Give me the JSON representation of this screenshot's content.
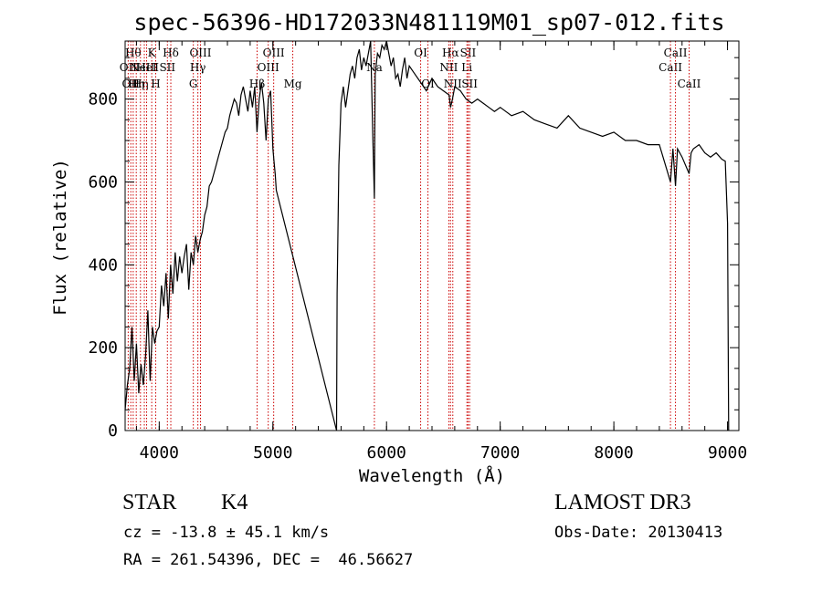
{
  "chart_data": {
    "type": "line",
    "title": "spec-56396-HD172033N481119M01_sp07-012.fits",
    "xlabel": "Wavelength (Å)",
    "ylabel": "Flux (relative)",
    "xlim": [
      3700,
      9100
    ],
    "ylim": [
      0,
      940
    ],
    "xticks": [
      4000,
      5000,
      6000,
      7000,
      8000,
      9000
    ],
    "yticks": [
      0,
      200,
      400,
      600,
      800
    ],
    "gap": [
      5030,
      5560
    ],
    "series": [
      {
        "name": "flux",
        "x": [
          3700,
          3720,
          3740,
          3760,
          3780,
          3800,
          3820,
          3840,
          3860,
          3880,
          3900,
          3920,
          3940,
          3960,
          3980,
          4000,
          4020,
          4040,
          4060,
          4080,
          4100,
          4120,
          4140,
          4160,
          4180,
          4200,
          4220,
          4240,
          4260,
          4280,
          4300,
          4320,
          4340,
          4360,
          4380,
          4400,
          4420,
          4440,
          4460,
          4480,
          4500,
          4520,
          4540,
          4560,
          4580,
          4600,
          4620,
          4640,
          4660,
          4680,
          4700,
          4720,
          4740,
          4760,
          4780,
          4800,
          4820,
          4840,
          4860,
          4880,
          4900,
          4920,
          4940,
          4960,
          4980,
          5000,
          5010,
          5020,
          5030,
          5560,
          5565,
          5580,
          5600,
          5620,
          5640,
          5660,
          5680,
          5700,
          5720,
          5740,
          5760,
          5780,
          5800,
          5820,
          5840,
          5860,
          5880,
          5893,
          5900,
          5920,
          5940,
          5960,
          5980,
          6000,
          6020,
          6040,
          6060,
          6080,
          6100,
          6120,
          6140,
          6160,
          6180,
          6200,
          6250,
          6300,
          6350,
          6400,
          6450,
          6500,
          6550,
          6563,
          6580,
          6600,
          6650,
          6700,
          6750,
          6800,
          6850,
          6900,
          6950,
          7000,
          7100,
          7200,
          7300,
          7400,
          7500,
          7600,
          7700,
          7800,
          7900,
          8000,
          8100,
          8200,
          8300,
          8400,
          8498,
          8520,
          8542,
          8560,
          8600,
          8662,
          8680,
          8700,
          8750,
          8800,
          8850,
          8900,
          8950,
          8980,
          9000,
          9010
        ],
        "values": [
          50,
          110,
          150,
          250,
          120,
          210,
          90,
          160,
          110,
          180,
          290,
          120,
          250,
          210,
          240,
          250,
          350,
          300,
          380,
          270,
          400,
          330,
          430,
          360,
          420,
          380,
          420,
          450,
          340,
          430,
          400,
          470,
          430,
          460,
          480,
          520,
          540,
          590,
          600,
          620,
          640,
          660,
          680,
          700,
          720,
          730,
          760,
          780,
          800,
          790,
          760,
          810,
          830,
          800,
          770,
          820,
          780,
          830,
          720,
          800,
          840,
          790,
          700,
          800,
          820,
          680,
          650,
          620,
          580,
          0,
          330,
          640,
          790,
          830,
          780,
          820,
          860,
          880,
          850,
          900,
          920,
          870,
          900,
          880,
          910,
          940,
          700,
          560,
          860,
          910,
          900,
          930,
          920,
          940,
          910,
          880,
          900,
          850,
          860,
          830,
          870,
          900,
          850,
          880,
          860,
          840,
          820,
          850,
          830,
          820,
          810,
          780,
          800,
          830,
          820,
          800,
          790,
          800,
          790,
          780,
          770,
          780,
          760,
          770,
          750,
          740,
          730,
          760,
          730,
          720,
          710,
          720,
          700,
          700,
          690,
          690,
          600,
          680,
          590,
          680,
          660,
          620,
          670,
          680,
          690,
          670,
          660,
          670,
          655,
          650,
          500,
          0
        ],
        "color": "#000000"
      }
    ],
    "lines_color": "#cc0000",
    "lines": [
      {
        "w": 3727,
        "label": "OII",
        "row": 2
      },
      {
        "w": 3750,
        "label": "OII",
        "row": 3
      },
      {
        "w": 3771,
        "label": "Hθ",
        "row": 1
      },
      {
        "w": 3798,
        "label": "Hη",
        "row": 3
      },
      {
        "w": 3835,
        "label": "Hη",
        "row": 3
      },
      {
        "w": 3869,
        "label": "NeIII",
        "row": 2
      },
      {
        "w": 3889,
        "label": "HeI",
        "row": 2
      },
      {
        "w": 3934,
        "label": "K",
        "row": 1
      },
      {
        "w": 3969,
        "label": "H",
        "row": 3
      },
      {
        "w": 4072,
        "label": "SII",
        "row": 2
      },
      {
        "w": 4102,
        "label": "Hδ",
        "row": 1
      },
      {
        "w": 4300,
        "label": "G",
        "row": 3
      },
      {
        "w": 4340,
        "label": "Hγ",
        "row": 2
      },
      {
        "w": 4363,
        "label": "OIII",
        "row": 1
      },
      {
        "w": 4861,
        "label": "Hβ",
        "row": 3
      },
      {
        "w": 4959,
        "label": "OIII",
        "row": 2
      },
      {
        "w": 5007,
        "label": "OIII",
        "row": 1
      },
      {
        "w": 5175,
        "label": "Mg",
        "row": 3
      },
      {
        "w": 5893,
        "label": "Na",
        "row": 2
      },
      {
        "w": 6300,
        "label": "OI",
        "row": 1
      },
      {
        "w": 6364,
        "label": "OI",
        "row": 3
      },
      {
        "w": 6548,
        "label": "NII",
        "row": 2
      },
      {
        "w": 6563,
        "label": "Hα",
        "row": 1
      },
      {
        "w": 6583,
        "label": "NII",
        "row": 3
      },
      {
        "w": 6707,
        "label": "Li",
        "row": 2
      },
      {
        "w": 6717,
        "label": "SII",
        "row": 1
      },
      {
        "w": 6731,
        "label": "SII",
        "row": 3
      },
      {
        "w": 8498,
        "label": "CaII",
        "row": 2
      },
      {
        "w": 8542,
        "label": "CaII",
        "row": 1
      },
      {
        "w": 8662,
        "label": "CaII",
        "row": 3
      }
    ]
  },
  "info": {
    "object_class": "STAR",
    "subclass": "K4",
    "survey": "LAMOST DR3",
    "cz": "cz = -13.8 ± 45.1 km/s",
    "obs_date": "Obs-Date: 20130413",
    "coords": "RA = 261.54396, DEC =  46.56627"
  }
}
